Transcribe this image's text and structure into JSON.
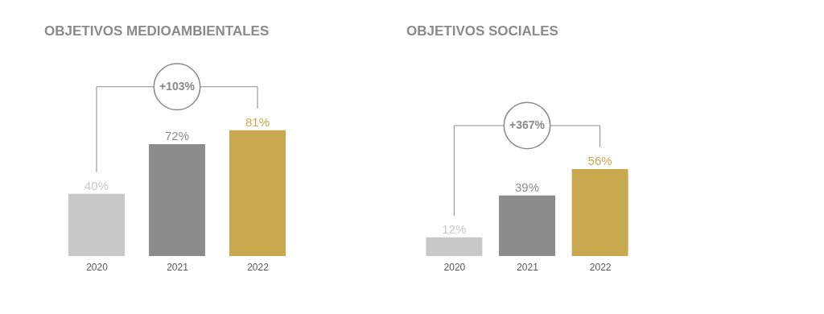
{
  "chart_data": [
    {
      "type": "bar",
      "title": "OBJETIVOS MEDIOAMBIENTALES",
      "categories": [
        "2020",
        "2021",
        "2022"
      ],
      "values": [
        40,
        72,
        81
      ],
      "colors": [
        "#c8c8c8",
        "#8c8c8c",
        "#c9a94f"
      ],
      "value_labels": [
        "40%",
        "72%",
        "81%"
      ],
      "annotations": [
        "+103%"
      ]
    },
    {
      "type": "bar",
      "title": "OBJETIVOS SOCIALES",
      "categories": [
        "2020",
        "2021",
        "2022"
      ],
      "values": [
        12,
        39,
        56
      ],
      "colors": [
        "#c8c8c8",
        "#8c8c8c",
        "#c9a94f"
      ],
      "value_labels": [
        "12%",
        "39%",
        "56%"
      ],
      "annotations": [
        "+367%"
      ]
    }
  ]
}
